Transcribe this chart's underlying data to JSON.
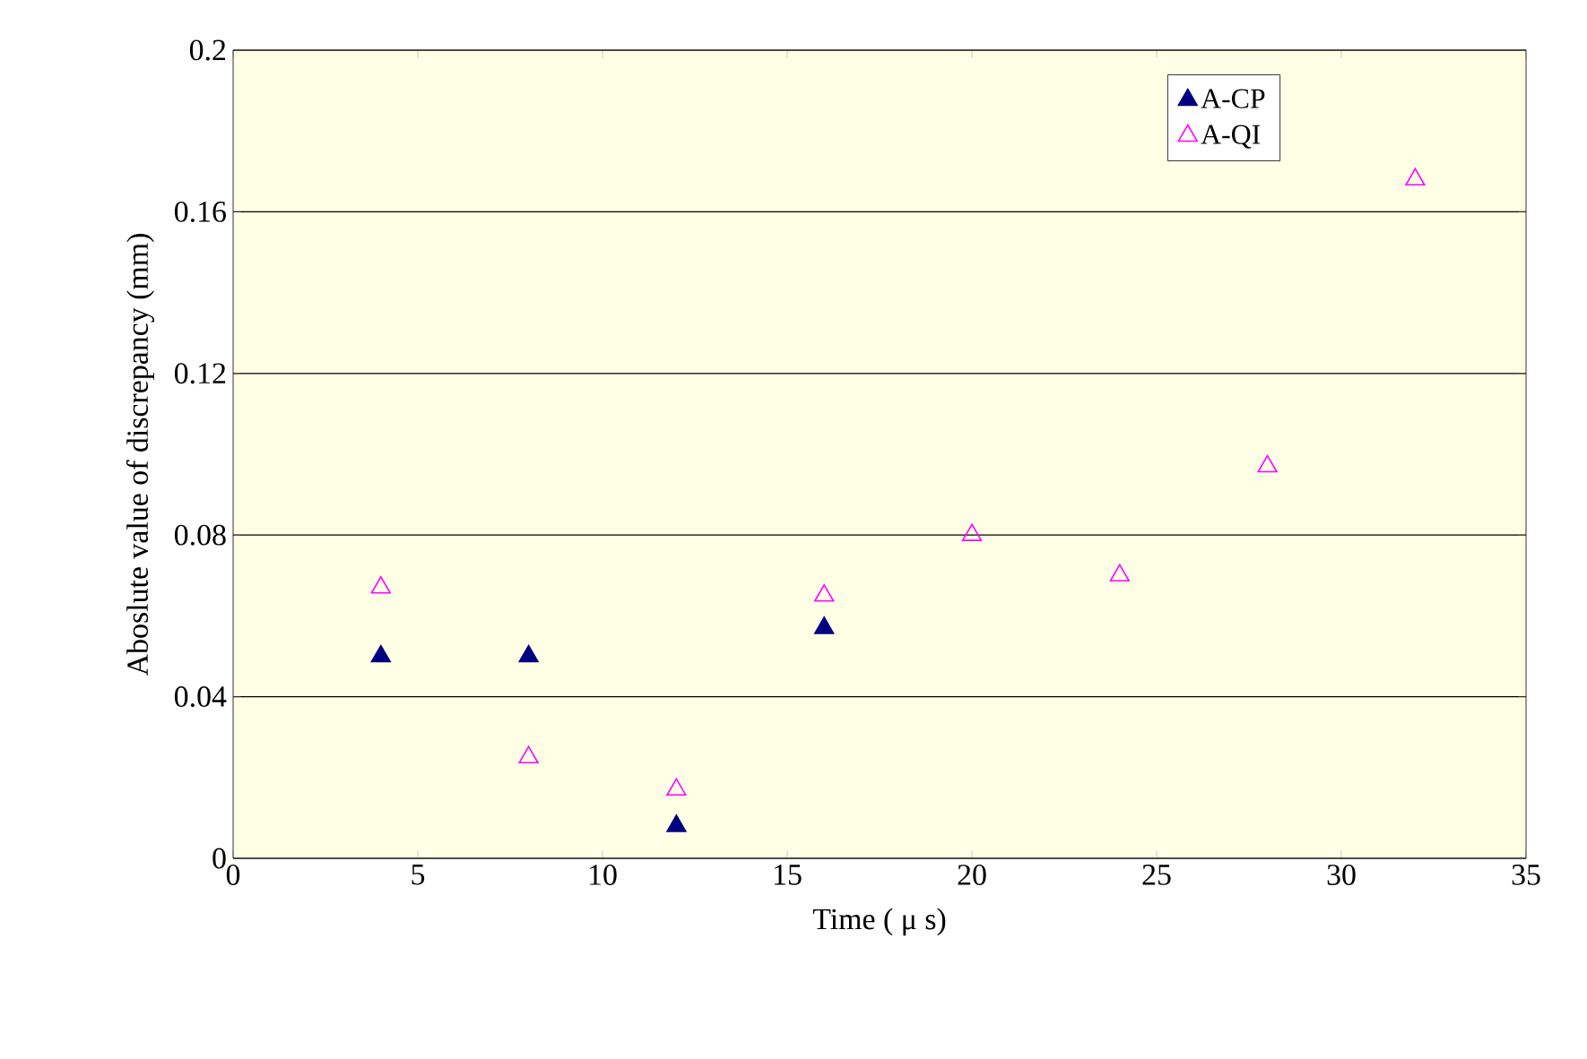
{
  "chart_data": {
    "type": "scatter",
    "xlabel": "Time ( μ s)",
    "ylabel": "Aboslute value of discrepancy (mm)",
    "xlim": [
      0,
      35
    ],
    "ylim": [
      0,
      0.2
    ],
    "xticks": [
      0,
      5,
      10,
      15,
      20,
      25,
      30,
      35
    ],
    "yticks": [
      {
        "value": 0,
        "label": "0"
      },
      {
        "value": 0.04,
        "label": "0.04"
      },
      {
        "value": 0.08,
        "label": "0.08"
      },
      {
        "value": 0.12,
        "label": "0.12"
      },
      {
        "value": 0.16,
        "label": "0.16"
      },
      {
        "value": 0.2,
        "label": "0.2"
      }
    ],
    "grid": "y",
    "legend": "top right",
    "marker": "triangle",
    "series": [
      {
        "name": "A-CP",
        "color": "#000080",
        "x": [
          4,
          8,
          12,
          16
        ],
        "values": [
          0.05,
          0.05,
          0.008,
          0.057
        ]
      },
      {
        "name": "A-QI",
        "color": "#ff00ff",
        "x": [
          4,
          8,
          12,
          16,
          20,
          24,
          28,
          32
        ],
        "values": [
          0.067,
          0.025,
          0.017,
          0.065,
          0.08,
          0.07,
          0.097,
          0.168
        ]
      }
    ]
  }
}
